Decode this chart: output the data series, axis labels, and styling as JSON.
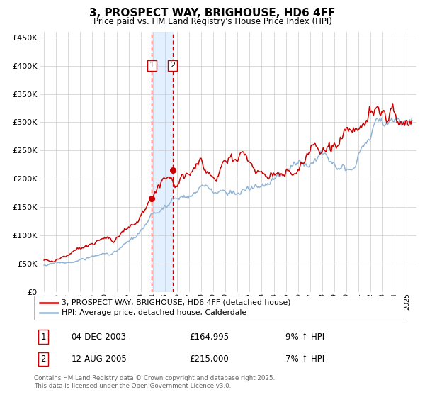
{
  "title": "3, PROSPECT WAY, BRIGHOUSE, HD6 4FF",
  "subtitle": "Price paid vs. HM Land Registry's House Price Index (HPI)",
  "sale1_date": "04-DEC-2003",
  "sale1_price": 164995,
  "sale1_hpi_pct": "9% ↑ HPI",
  "sale1_year": 2003.917,
  "sale2_date": "12-AUG-2005",
  "sale2_price": 215000,
  "sale2_hpi_pct": "7% ↑ HPI",
  "sale2_year": 2005.625,
  "hpi_color": "#92b4d4",
  "price_color": "#cc0000",
  "span_color": "#ddeeff",
  "legend_label_price": "3, PROSPECT WAY, BRIGHOUSE, HD6 4FF (detached house)",
  "legend_label_hpi": "HPI: Average price, detached house, Calderdale",
  "footer": "Contains HM Land Registry data © Crown copyright and database right 2025.\nThis data is licensed under the Open Government Licence v3.0.",
  "ylim": [
    0,
    460000
  ],
  "yticks": [
    0,
    50000,
    100000,
    150000,
    200000,
    250000,
    300000,
    350000,
    400000,
    450000
  ],
  "xlim_start": 1994.7,
  "xlim_end": 2025.8,
  "background_color": "#ffffff",
  "grid_color": "#cccccc"
}
